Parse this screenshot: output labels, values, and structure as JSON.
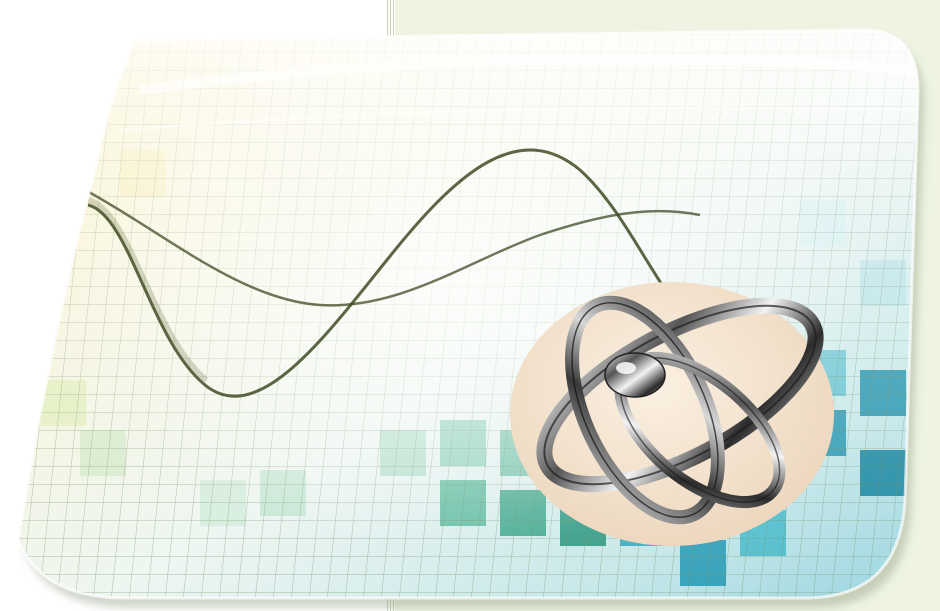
{
  "artwork": {
    "background_picture": "graph-paper-wave-illustration",
    "emblem": "metallic-interlocking-rings-icon",
    "colors": {
      "page_left": "#ffffff",
      "page_right": "#eef3e2",
      "grid_line": "#6e8a5a",
      "wave_line": "#3f4a24",
      "tile_green": "#2fa781",
      "tile_teal": "#1f9db6",
      "tile_yellow": "#e9d65a",
      "emblem_disc": "#f1e1cd",
      "emblem_metal": "#3a3a3a"
    }
  }
}
